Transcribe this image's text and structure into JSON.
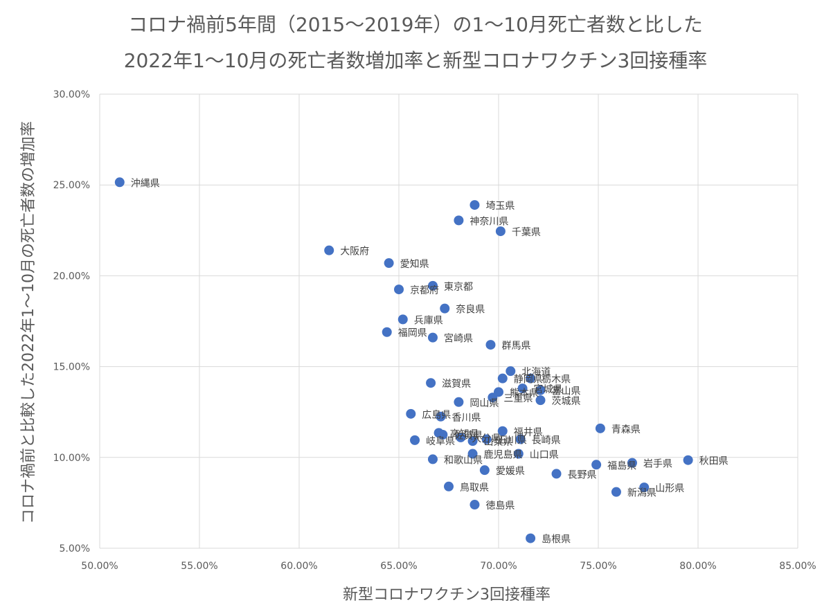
{
  "chart_data": {
    "type": "scatter",
    "title_line1": "コロナ禍前5年間（2015〜2019年）の1〜10月死亡者数と比した",
    "title_line2": "2022年1〜10月の死亡者数増加率と新型コロナワクチン3回接種率",
    "xlabel": "新型コロナワクチン3回接種率",
    "ylabel": "コロナ禍前と比較した2022年1〜10月の死亡者数の増加率",
    "xlim": [
      50,
      85
    ],
    "ylim": [
      5,
      30
    ],
    "x_ticks": [
      "50.00%",
      "55.00%",
      "60.00%",
      "65.00%",
      "70.00%",
      "75.00%",
      "80.00%",
      "85.00%"
    ],
    "y_ticks": [
      "5.00%",
      "10.00%",
      "15.00%",
      "20.00%",
      "25.00%",
      "30.00%"
    ],
    "grid": true,
    "marker_color": "#4472C4",
    "points": [
      {
        "label": "沖縄県",
        "x": 51.0,
        "y": 25.15
      },
      {
        "label": "埼玉県",
        "x": 68.8,
        "y": 23.9
      },
      {
        "label": "神奈川県",
        "x": 68.0,
        "y": 23.05
      },
      {
        "label": "千葉県",
        "x": 70.1,
        "y": 22.45
      },
      {
        "label": "大阪府",
        "x": 61.5,
        "y": 21.4
      },
      {
        "label": "愛知県",
        "x": 64.5,
        "y": 20.7
      },
      {
        "label": "京都府",
        "x": 65.0,
        "y": 19.25
      },
      {
        "label": "東京都",
        "x": 66.7,
        "y": 19.45
      },
      {
        "label": "奈良県",
        "x": 67.3,
        "y": 18.2
      },
      {
        "label": "兵庫県",
        "x": 65.2,
        "y": 17.6
      },
      {
        "label": "福岡県",
        "x": 64.4,
        "y": 16.9
      },
      {
        "label": "宮崎県",
        "x": 66.7,
        "y": 16.6
      },
      {
        "label": "群馬県",
        "x": 69.6,
        "y": 16.2
      },
      {
        "label": "北海道",
        "x": 70.6,
        "y": 14.75
      },
      {
        "label": "静岡県",
        "x": 70.2,
        "y": 14.35
      },
      {
        "label": "栃木県",
        "x": 71.6,
        "y": 14.35
      },
      {
        "label": "滋賀県",
        "x": 66.6,
        "y": 14.1
      },
      {
        "label": "宮城県",
        "x": 71.2,
        "y": 13.8
      },
      {
        "label": "富山県",
        "x": 72.1,
        "y": 13.7
      },
      {
        "label": "熊本県",
        "x": 70.0,
        "y": 13.6
      },
      {
        "label": "三重県",
        "x": 69.7,
        "y": 13.3
      },
      {
        "label": "茨城県",
        "x": 72.1,
        "y": 13.15
      },
      {
        "label": "岡山県",
        "x": 68.0,
        "y": 13.05
      },
      {
        "label": "広島県",
        "x": 65.6,
        "y": 12.4
      },
      {
        "label": "香川県",
        "x": 67.1,
        "y": 12.25
      },
      {
        "label": "青森県",
        "x": 75.1,
        "y": 11.6
      },
      {
        "label": "福井県",
        "x": 70.2,
        "y": 11.45
      },
      {
        "label": "高知県",
        "x": 67.0,
        "y": 11.35
      },
      {
        "label": "佐賀県",
        "x": 67.2,
        "y": 11.25
      },
      {
        "label": "大分県",
        "x": 68.1,
        "y": 11.1
      },
      {
        "label": "石川県",
        "x": 69.4,
        "y": 11.0
      },
      {
        "label": "山梨県",
        "x": 68.7,
        "y": 10.9
      },
      {
        "label": "長崎県",
        "x": 71.1,
        "y": 11.0
      },
      {
        "label": "岐阜県",
        "x": 65.8,
        "y": 10.95
      },
      {
        "label": "鹿児島県",
        "x": 68.7,
        "y": 10.2
      },
      {
        "label": "山口県",
        "x": 71.0,
        "y": 10.2
      },
      {
        "label": "和歌山県",
        "x": 66.7,
        "y": 9.9
      },
      {
        "label": "秋田県",
        "x": 79.5,
        "y": 9.85
      },
      {
        "label": "岩手県",
        "x": 76.7,
        "y": 9.7
      },
      {
        "label": "福島県",
        "x": 74.9,
        "y": 9.6
      },
      {
        "label": "愛媛県",
        "x": 69.3,
        "y": 9.3
      },
      {
        "label": "長野県",
        "x": 72.9,
        "y": 9.1
      },
      {
        "label": "鳥取県",
        "x": 67.5,
        "y": 8.4
      },
      {
        "label": "山形県",
        "x": 77.3,
        "y": 8.35
      },
      {
        "label": "新潟県",
        "x": 75.9,
        "y": 8.1
      },
      {
        "label": "徳島県",
        "x": 68.8,
        "y": 7.4
      },
      {
        "label": "島根県",
        "x": 71.6,
        "y": 5.55
      }
    ]
  }
}
